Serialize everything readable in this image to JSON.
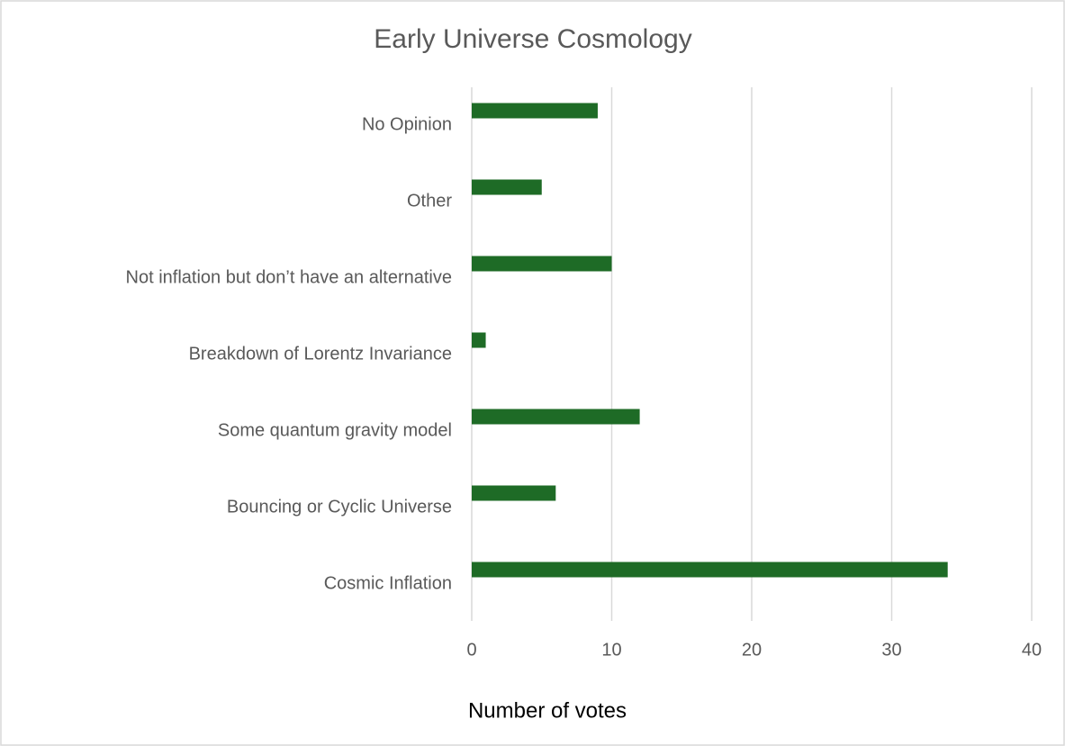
{
  "chart_data": {
    "type": "barh",
    "title": "Early Universe Cosmology",
    "categories": [
      "No Opinion",
      "Other",
      "Not inflation but don’t have an alternative",
      "Breakdown of Lorentz Invariance",
      "Some quantum gravity model",
      "Bouncing or Cyclic Universe",
      "Cosmic Inflation"
    ],
    "values": [
      9,
      5,
      10,
      1,
      12,
      6,
      34
    ],
    "color": "#1e6b26",
    "xlabel": "Number of votes",
    "xlim": [
      0,
      40
    ],
    "xticks": [
      0,
      10,
      20,
      30,
      40
    ],
    "grid": true
  }
}
